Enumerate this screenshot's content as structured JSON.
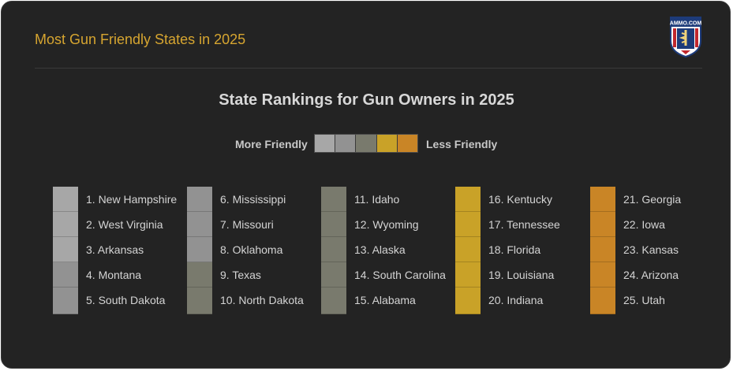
{
  "header": {
    "title": "Most Gun Friendly States in 2025",
    "logo_text": "AMMO.COM"
  },
  "chart_data": {
    "type": "table",
    "title": "State Rankings for Gun Owners in 2025",
    "legend": {
      "left_label": "More Friendly",
      "right_label": "Less Friendly",
      "colors": [
        "#a7a7a7",
        "#929292",
        "#797a6d",
        "#c9a228",
        "#c98526"
      ]
    },
    "rankings": [
      {
        "rank": 1,
        "label": "1. New Hampshire",
        "tier": 0
      },
      {
        "rank": 2,
        "label": "2. West Virginia",
        "tier": 0
      },
      {
        "rank": 3,
        "label": "3. Arkansas",
        "tier": 0
      },
      {
        "rank": 4,
        "label": "4. Montana",
        "tier": 1
      },
      {
        "rank": 5,
        "label": "5. South Dakota",
        "tier": 1
      },
      {
        "rank": 6,
        "label": "6. Mississippi",
        "tier": 1
      },
      {
        "rank": 7,
        "label": "7. Missouri",
        "tier": 1
      },
      {
        "rank": 8,
        "label": "8. Oklahoma",
        "tier": 1
      },
      {
        "rank": 9,
        "label": "9. Texas",
        "tier": 2
      },
      {
        "rank": 10,
        "label": "10. North Dakota",
        "tier": 2
      },
      {
        "rank": 11,
        "label": "11. Idaho",
        "tier": 2
      },
      {
        "rank": 12,
        "label": "12. Wyoming",
        "tier": 2
      },
      {
        "rank": 13,
        "label": "13. Alaska",
        "tier": 2
      },
      {
        "rank": 14,
        "label": "14. South Carolina",
        "tier": 2
      },
      {
        "rank": 15,
        "label": "15. Alabama",
        "tier": 2
      },
      {
        "rank": 16,
        "label": "16. Kentucky",
        "tier": 3
      },
      {
        "rank": 17,
        "label": "17. Tennessee",
        "tier": 3
      },
      {
        "rank": 18,
        "label": "18. Florida",
        "tier": 3
      },
      {
        "rank": 19,
        "label": "19. Louisiana",
        "tier": 3
      },
      {
        "rank": 20,
        "label": "20. Indiana",
        "tier": 3
      },
      {
        "rank": 21,
        "label": "21. Georgia",
        "tier": 4
      },
      {
        "rank": 22,
        "label": "22. Iowa",
        "tier": 4
      },
      {
        "rank": 23,
        "label": "23. Kansas",
        "tier": 4
      },
      {
        "rank": 24,
        "label": "24. Arizona",
        "tier": 4
      },
      {
        "rank": 25,
        "label": "25. Utah",
        "tier": 4
      }
    ]
  }
}
